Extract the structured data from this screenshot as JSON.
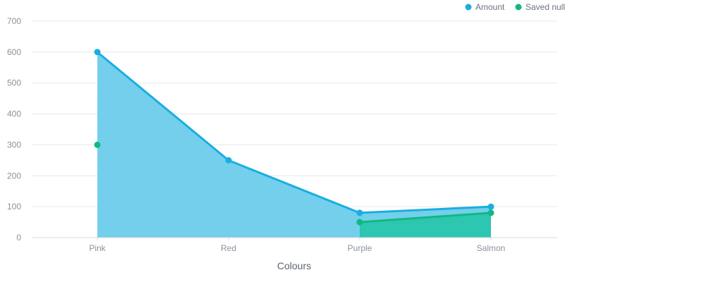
{
  "chart_data": {
    "type": "area",
    "categories": [
      "Pink",
      "Red",
      "Purple",
      "Salmon"
    ],
    "series": [
      {
        "name": "Amount",
        "values": [
          600,
          250,
          80,
          100
        ],
        "color": "#1aaee0",
        "fill": "#73cfeb"
      },
      {
        "name": "Saved null",
        "values": [
          300,
          null,
          50,
          80
        ],
        "color": "#10b981",
        "fill": "#2cc6b1"
      }
    ],
    "title": "",
    "xlabel": "Colours",
    "ylabel": "",
    "ylim": [
      0,
      700
    ],
    "yticks": [
      0,
      100,
      200,
      300,
      400,
      500,
      600,
      700
    ],
    "grid": true,
    "legend_position": "top-right"
  }
}
